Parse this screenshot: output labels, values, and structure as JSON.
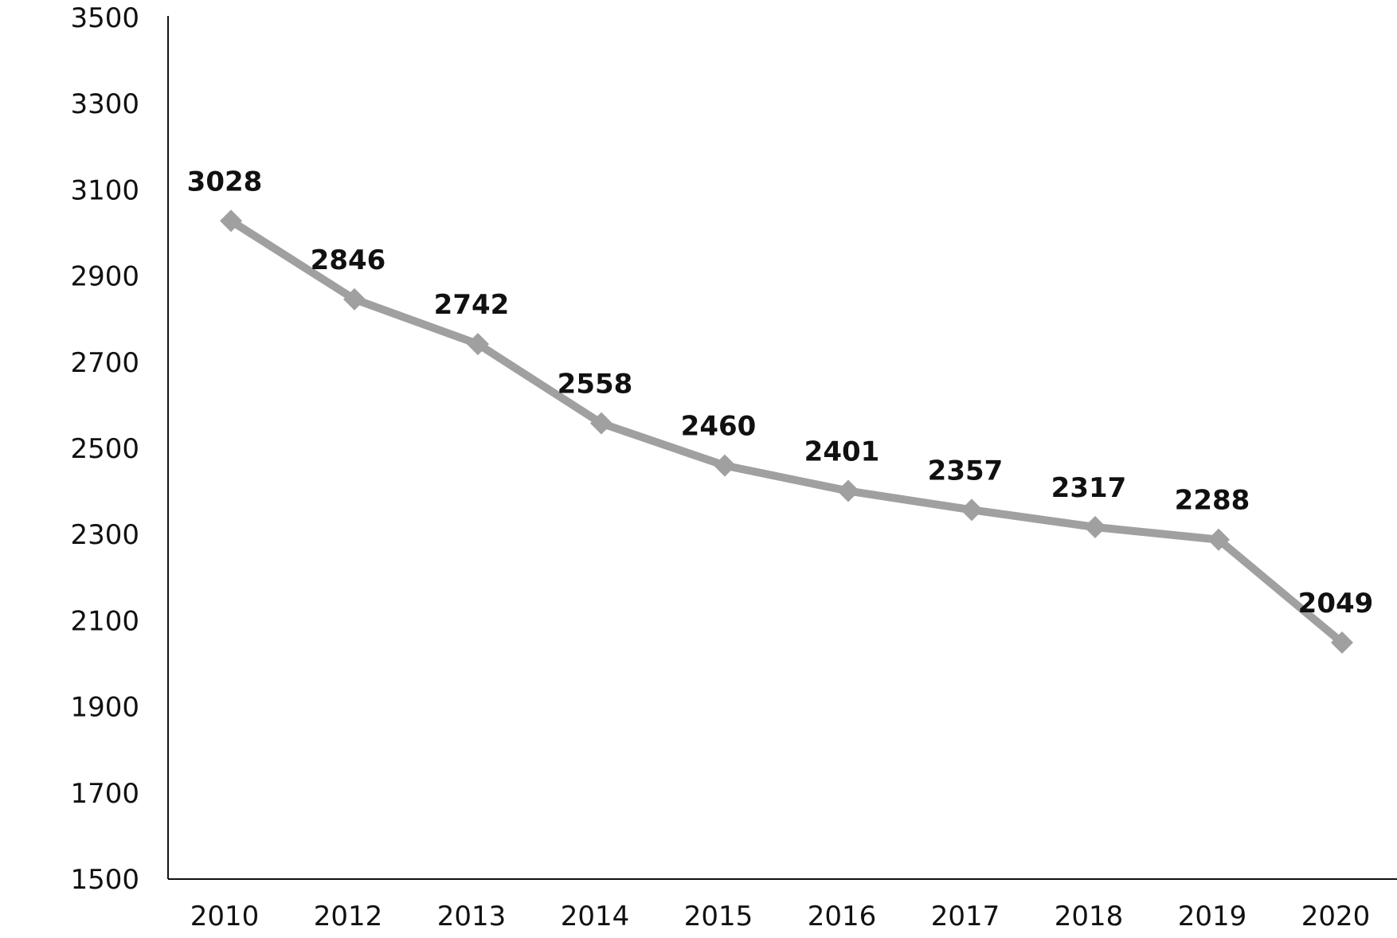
{
  "chart_data": {
    "type": "line",
    "categories": [
      "2010",
      "2012",
      "2013",
      "2014",
      "2015",
      "2016",
      "2017",
      "2018",
      "2019",
      "2020"
    ],
    "series": [
      {
        "values": [
          3028,
          2846,
          2742,
          2558,
          2460,
          2401,
          2357,
          2317,
          2288,
          2049
        ],
        "color": "#a0a0a0",
        "marker": "diamond",
        "data_labels": [
          "3028",
          "2846",
          "2742",
          "2558",
          "2460",
          "2401",
          "2357",
          "2317",
          "2288",
          "2049"
        ]
      }
    ],
    "title": "",
    "xlabel": "",
    "ylabel": "",
    "ylim": [
      1500,
      3500
    ],
    "yticks": [
      "1500",
      "1700",
      "1900",
      "2100",
      "2300",
      "2500",
      "2700",
      "2900",
      "3100",
      "3300",
      "3500"
    ],
    "grid": false,
    "legend": "none",
    "axis_color": "#111111",
    "text_color": "#111111"
  }
}
